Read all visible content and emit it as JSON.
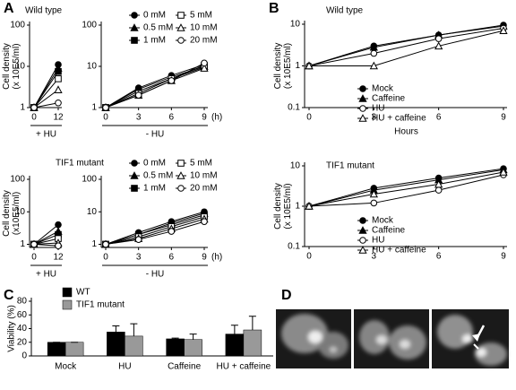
{
  "panel_labels": [
    "A",
    "B",
    "C",
    "D"
  ],
  "chart_data": [
    {
      "type": "line",
      "title": "Wild type",
      "ylabel": [
        "Cell density",
        "(x 10E5/ml)"
      ],
      "xlabel": "+ HU",
      "x": [
        0,
        12
      ],
      "xlim": [
        0,
        12
      ],
      "xticks": [
        0,
        12
      ],
      "log_y": true,
      "ylim": [
        1,
        100
      ],
      "yticks": [
        1,
        10,
        100
      ],
      "series": [
        {
          "name": "0 mM",
          "color": "#000000",
          "marker": "circle-filled",
          "values": [
            1,
            11
          ]
        },
        {
          "name": "0.5 mM",
          "color": "#000000",
          "marker": "triangle-filled",
          "values": [
            1,
            9
          ]
        },
        {
          "name": "1 mM",
          "color": "#000000",
          "marker": "square-filled",
          "values": [
            1,
            7.5
          ]
        },
        {
          "name": "5 mM",
          "color": "#000000",
          "marker": "square-open",
          "values": [
            1,
            5
          ]
        },
        {
          "name": "10 mM",
          "color": "#000000",
          "marker": "triangle-open",
          "values": [
            1,
            2.7
          ]
        },
        {
          "name": "20 mM",
          "color": "#000000",
          "marker": "circle-open",
          "values": [
            1,
            1.3
          ]
        }
      ]
    },
    {
      "type": "line",
      "xlabel": "- HU",
      "x_unit": "(h)",
      "x": [
        0,
        3,
        6,
        9
      ],
      "xlim": [
        0,
        9
      ],
      "xticks": [
        0,
        3,
        6,
        9
      ],
      "log_y": true,
      "ylim": [
        1,
        100
      ],
      "yticks": [
        1,
        10,
        100
      ],
      "series": [
        {
          "color": "#000000",
          "marker": "circle-filled",
          "values": [
            1,
            3,
            6,
            11
          ]
        },
        {
          "color": "#000000",
          "marker": "triangle-filled",
          "values": [
            1,
            2.8,
            5.5,
            10
          ]
        },
        {
          "color": "#000000",
          "marker": "square-filled",
          "values": [
            1,
            2.5,
            5,
            9.5
          ]
        },
        {
          "color": "#000000",
          "marker": "square-open",
          "values": [
            1,
            2.2,
            5,
            10.5
          ]
        },
        {
          "color": "#000000",
          "marker": "triangle-open",
          "values": [
            1,
            2,
            4.5,
            9
          ]
        },
        {
          "color": "#000000",
          "marker": "circle-open",
          "values": [
            1,
            2,
            4.5,
            12
          ]
        }
      ]
    },
    {
      "type": "line",
      "title": "TIF1 mutant",
      "ylabel": [
        "Cell density",
        "(x10E5/ml)"
      ],
      "xlabel": "+ HU",
      "x": [
        0,
        12
      ],
      "xlim": [
        0,
        12
      ],
      "xticks": [
        0,
        12
      ],
      "log_y": true,
      "ylim": [
        0.8,
        100
      ],
      "yticks": [
        1,
        10,
        100
      ],
      "series": [
        {
          "name": "0 mM",
          "color": "#000000",
          "marker": "circle-filled",
          "values": [
            1,
            4
          ]
        },
        {
          "name": "0.5 mM",
          "color": "#000000",
          "marker": "triangle-filled",
          "values": [
            1,
            2.5
          ]
        },
        {
          "name": "1 mM",
          "color": "#000000",
          "marker": "square-filled",
          "values": [
            1,
            2
          ]
        },
        {
          "name": "5 mM",
          "color": "#000000",
          "marker": "square-open",
          "values": [
            1,
            1.5
          ]
        },
        {
          "name": "10 mM",
          "color": "#000000",
          "marker": "triangle-open",
          "values": [
            1,
            1.1
          ]
        },
        {
          "name": "20 mM",
          "color": "#000000",
          "marker": "circle-open",
          "values": [
            1,
            0.9
          ]
        }
      ]
    },
    {
      "type": "line",
      "xlabel": "- HU",
      "x_unit": "(h)",
      "x": [
        0,
        3,
        6,
        9
      ],
      "xlim": [
        0,
        9
      ],
      "xticks": [
        0,
        3,
        6,
        9
      ],
      "log_y": true,
      "ylim": [
        0.8,
        100
      ],
      "yticks": [
        1,
        10,
        100
      ],
      "series": [
        {
          "color": "#000000",
          "marker": "circle-filled",
          "values": [
            1,
            2.3,
            5,
            10
          ]
        },
        {
          "color": "#000000",
          "marker": "triangle-filled",
          "values": [
            1,
            2,
            4.5,
            9
          ]
        },
        {
          "color": "#000000",
          "marker": "square-filled",
          "values": [
            1,
            2,
            4,
            8
          ]
        },
        {
          "color": "#000000",
          "marker": "square-open",
          "values": [
            1,
            1.7,
            3.5,
            7
          ]
        },
        {
          "color": "#000000",
          "marker": "triangle-open",
          "values": [
            1,
            1.5,
            3,
            6
          ]
        },
        {
          "color": "#000000",
          "marker": "circle-open",
          "values": [
            1,
            1.4,
            2.5,
            5
          ]
        }
      ]
    },
    {
      "type": "line",
      "title": "Wild type",
      "ylabel": [
        "Cell density",
        "(x 10E5/ml)"
      ],
      "xlabel": "Hours",
      "x": [
        0,
        3,
        6,
        9
      ],
      "xlim": [
        0,
        9
      ],
      "xticks": [
        0,
        3,
        6,
        9
      ],
      "log_y": true,
      "ylim": [
        0.1,
        10
      ],
      "yticks": [
        0.1,
        1,
        10
      ],
      "series": [
        {
          "name": "Mock",
          "color": "#000000",
          "marker": "circle-filled",
          "values": [
            1,
            3,
            5.5,
            9.5
          ]
        },
        {
          "name": "Caffeine",
          "color": "#000000",
          "marker": "triangle-filled",
          "values": [
            1,
            2.8,
            5.5,
            9
          ]
        },
        {
          "name": "HU",
          "color": "#000000",
          "marker": "circle-open",
          "values": [
            1,
            2,
            4.5,
            8
          ]
        },
        {
          "name": "HU + caffeine",
          "color": "#000000",
          "marker": "triangle-open",
          "values": [
            1,
            1,
            3,
            7
          ]
        }
      ]
    },
    {
      "type": "line",
      "title": "TIF1 mutant",
      "ylabel": [
        "Cell density",
        "(x 10E5/ml)"
      ],
      "x": [
        0,
        3,
        6,
        9
      ],
      "xlim": [
        0,
        9
      ],
      "xticks": [
        0,
        3,
        6,
        9
      ],
      "log_y": true,
      "ylim": [
        0.1,
        10
      ],
      "yticks": [
        0.1,
        1,
        10
      ],
      "series": [
        {
          "name": "Mock",
          "color": "#000000",
          "marker": "circle-filled",
          "values": [
            1,
            2.8,
            5,
            8.5
          ]
        },
        {
          "name": "Caffeine",
          "color": "#000000",
          "marker": "triangle-filled",
          "values": [
            1,
            2.5,
            4.5,
            8
          ]
        },
        {
          "name": "HU",
          "color": "#000000",
          "marker": "circle-open",
          "values": [
            1,
            1.2,
            2.5,
            6
          ]
        },
        {
          "name": "HU + caffeine",
          "color": "#000000",
          "marker": "triangle-open",
          "values": [
            1,
            2,
            3.5,
            7
          ]
        }
      ]
    },
    {
      "type": "bar",
      "ylabel": [
        "Viability (%)"
      ],
      "categories": [
        "Mock",
        "HU",
        "Caffeine",
        "HU + caffeine"
      ],
      "ylim": [
        0,
        80
      ],
      "yticks": [
        0,
        20,
        40,
        60,
        80
      ],
      "series": [
        {
          "name": "WT",
          "color": "#000000",
          "values": [
            20,
            35,
            25,
            32
          ],
          "errors": [
            0,
            9,
            1,
            13
          ]
        },
        {
          "name": "TIF1 mutant",
          "color": "#999999",
          "values": [
            20,
            29,
            24,
            38
          ],
          "errors": [
            0,
            18,
            8,
            20
          ]
        }
      ]
    }
  ]
}
